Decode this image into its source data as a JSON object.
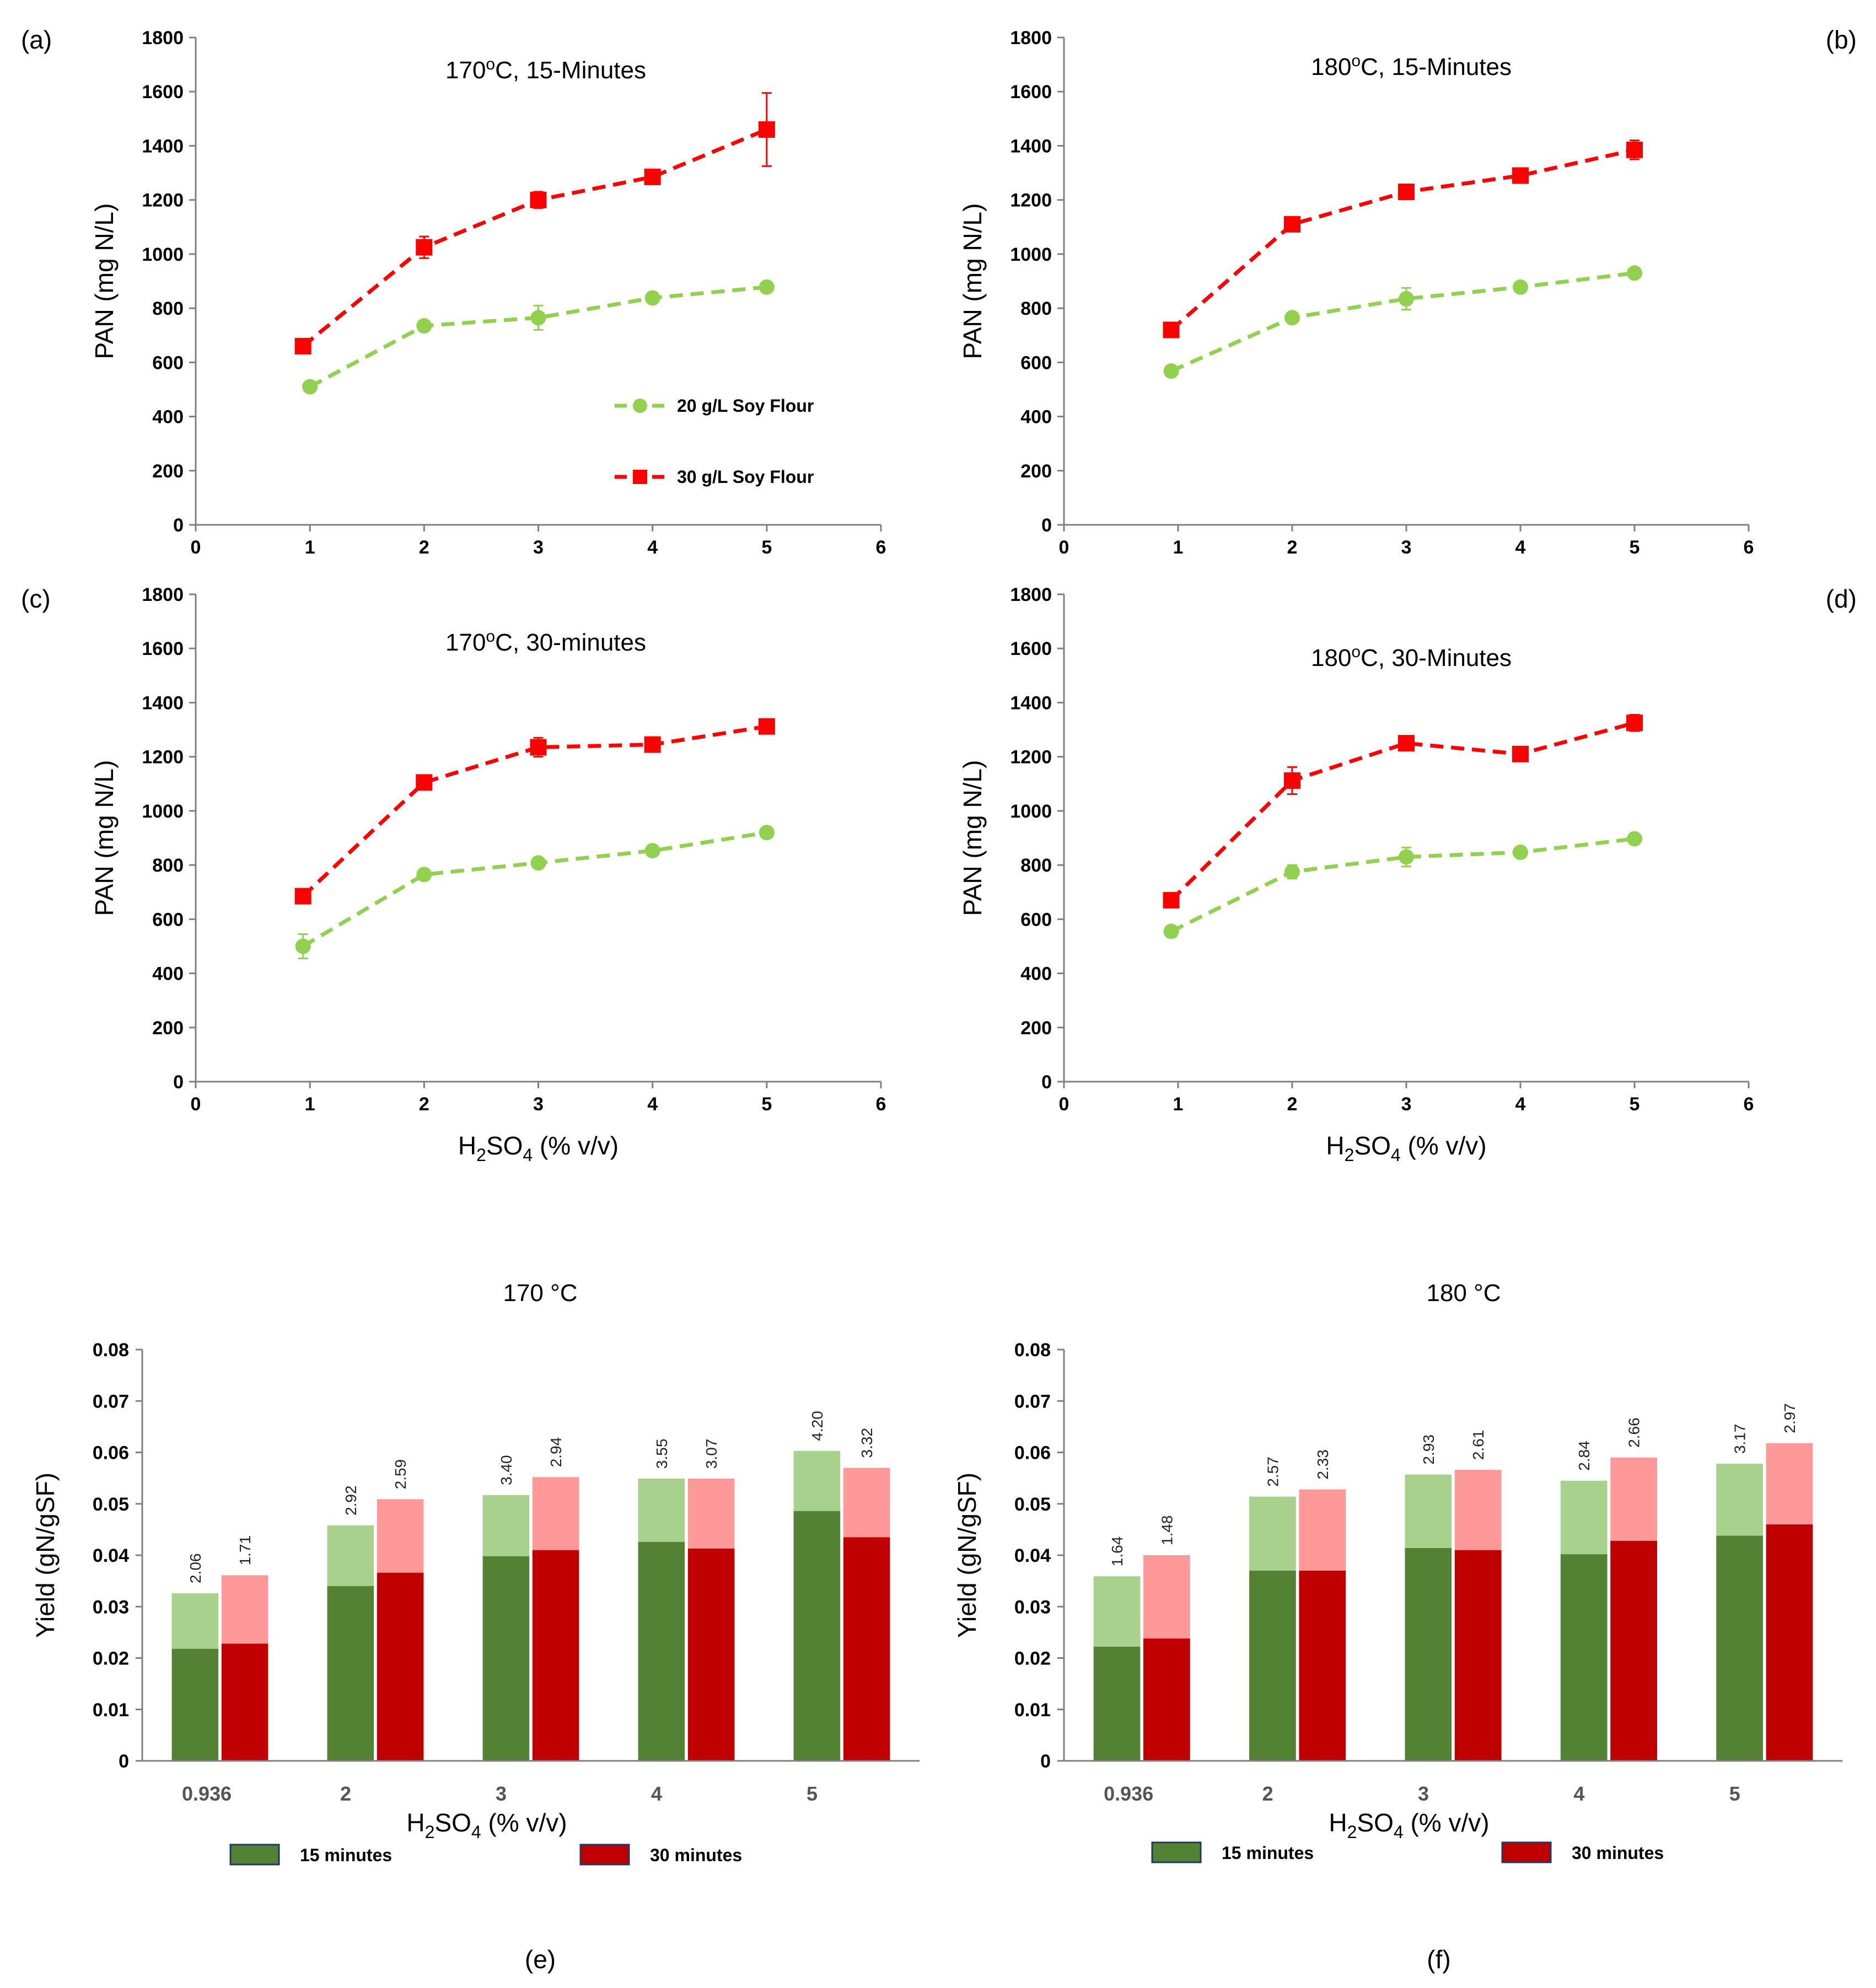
{
  "chart_data": [
    {
      "id": "a",
      "type": "line",
      "tag": "(a)",
      "title": "170°C, 15-Minutes",
      "title_main": "170",
      "title_sup": "o",
      "title_rest": "C, 15-Minutes",
      "ylabel": "PAN (mg N/L)",
      "xlabel": "",
      "xlim": [
        0,
        6
      ],
      "ylim": [
        0,
        1800
      ],
      "xticks": [
        "0",
        "1",
        "2",
        "3",
        "4",
        "5",
        "6"
      ],
      "yticks": [
        "0",
        "200",
        "400",
        "600",
        "800",
        "1000",
        "1200",
        "1400",
        "1600",
        "1800"
      ],
      "show_legend": true,
      "series": [
        {
          "name": "20 g/L Soy Flour",
          "color": "#92d050",
          "marker": "circle",
          "x": [
            1,
            2,
            3,
            4,
            5
          ],
          "y": [
            510,
            735,
            765,
            838,
            878
          ],
          "err": [
            10,
            15,
            45,
            10,
            10
          ]
        },
        {
          "name": "30 g/L Soy Flour",
          "color": "#ff0000",
          "marker": "square",
          "x": [
            0.94,
            2,
            3,
            4,
            5
          ],
          "y": [
            660,
            1025,
            1200,
            1285,
            1460
          ],
          "err": [
            10,
            40,
            30,
            10,
            135
          ]
        }
      ]
    },
    {
      "id": "b",
      "type": "line",
      "tag": "(b)",
      "title": "180°C, 15-Minutes",
      "title_main": "180",
      "title_sup": "o",
      "title_rest": "C, 15-Minutes",
      "ylabel": "PAN (mg N/L)",
      "xlabel": "",
      "xlim": [
        0,
        6
      ],
      "ylim": [
        0,
        1800
      ],
      "xticks": [
        "0",
        "1",
        "2",
        "3",
        "4",
        "5",
        "6"
      ],
      "yticks": [
        "0",
        "200",
        "400",
        "600",
        "800",
        "1000",
        "1200",
        "1400",
        "1600",
        "1800"
      ],
      "show_legend": false,
      "series": [
        {
          "name": "20 g/L Soy Flour",
          "color": "#92d050",
          "marker": "circle",
          "x": [
            0.94,
            2,
            3,
            4,
            5
          ],
          "y": [
            568,
            765,
            835,
            878,
            930
          ],
          "err": [
            10,
            12,
            40,
            10,
            10
          ]
        },
        {
          "name": "30 g/L Soy Flour",
          "color": "#ff0000",
          "marker": "square",
          "x": [
            0.94,
            2,
            3,
            4,
            5
          ],
          "y": [
            720,
            1110,
            1230,
            1290,
            1385
          ],
          "err": [
            10,
            15,
            15,
            15,
            35
          ]
        }
      ]
    },
    {
      "id": "c",
      "type": "line",
      "tag": "(c)",
      "title": "170°C, 30-minutes",
      "title_main": "170",
      "title_sup": "o",
      "title_rest": "C, 30-minutes",
      "ylabel": "PAN (mg N/L)",
      "xlabel": "H2SO4 (% v/v)",
      "xlim": [
        0,
        6
      ],
      "ylim": [
        0,
        1800
      ],
      "xticks": [
        "0",
        "1",
        "2",
        "3",
        "4",
        "5",
        "6"
      ],
      "yticks": [
        "0",
        "200",
        "400",
        "600",
        "800",
        "1000",
        "1200",
        "1400",
        "1600",
        "1800"
      ],
      "show_legend": false,
      "series": [
        {
          "name": "20 g/L Soy Flour",
          "color": "#92d050",
          "marker": "circle",
          "x": [
            0.94,
            2,
            3,
            4,
            5
          ],
          "y": [
            500,
            765,
            808,
            853,
            920
          ],
          "err": [
            45,
            10,
            10,
            10,
            10
          ]
        },
        {
          "name": "30 g/L Soy Flour",
          "color": "#ff0000",
          "marker": "square",
          "x": [
            0.94,
            2,
            3,
            4,
            5
          ],
          "y": [
            685,
            1105,
            1235,
            1245,
            1312
          ],
          "err": [
            10,
            15,
            35,
            10,
            15
          ]
        }
      ]
    },
    {
      "id": "d",
      "type": "line",
      "tag": "(d)",
      "title": "180°C, 30-Minutes",
      "title_main": "180",
      "title_sup": "o",
      "title_rest": "C, 30-Minutes",
      "ylabel": "PAN (mg N/L)",
      "xlabel": "H2SO4 (% v/v)",
      "xlim": [
        0,
        6
      ],
      "ylim": [
        0,
        1800
      ],
      "xticks": [
        "0",
        "1",
        "2",
        "3",
        "4",
        "5",
        "6"
      ],
      "yticks": [
        "0",
        "200",
        "400",
        "600",
        "800",
        "1000",
        "1200",
        "1400",
        "1600",
        "1800"
      ],
      "show_legend": false,
      "series": [
        {
          "name": "20 g/L Soy Flour",
          "color": "#92d050",
          "marker": "circle",
          "x": [
            0.94,
            2,
            3,
            4,
            5
          ],
          "y": [
            555,
            775,
            830,
            847,
            897
          ],
          "err": [
            10,
            25,
            35,
            10,
            10
          ]
        },
        {
          "name": "30 g/L Soy Flour",
          "color": "#ff0000",
          "marker": "square",
          "x": [
            0.94,
            2,
            3,
            4,
            5
          ],
          "y": [
            670,
            1112,
            1250,
            1210,
            1325
          ],
          "err": [
            10,
            50,
            10,
            15,
            30
          ]
        }
      ]
    },
    {
      "id": "e",
      "type": "bar",
      "tag": "(e)",
      "title": "170 °C",
      "ylabel": "Yield (gN/gSF)",
      "xlabel": "H2SO4 (% v/v)",
      "ylim": [
        0,
        0.08
      ],
      "yticks": [
        "0",
        "0.01",
        "0.02",
        "0.03",
        "0.04",
        "0.05",
        "0.06",
        "0.07",
        "0.08"
      ],
      "categories": [
        "0.936",
        "2",
        "3",
        "4",
        "5"
      ],
      "series": [
        {
          "name": "15 minutes",
          "color_dark": "#548235",
          "color_light": "#a9d18e",
          "lower": [
            0.0218,
            0.034,
            0.0398,
            0.0426,
            0.0486
          ],
          "total": [
            0.0326,
            0.0458,
            0.0517,
            0.0549,
            0.0603
          ],
          "labels": [
            "2.06",
            "2.92",
            "3.40",
            "3.55",
            "4.20"
          ]
        },
        {
          "name": "30 minutes",
          "color_dark": "#c00000",
          "color_light": "#ff9999",
          "lower": [
            0.0228,
            0.0366,
            0.041,
            0.0413,
            0.0435
          ],
          "total": [
            0.0361,
            0.0509,
            0.0552,
            0.0549,
            0.057
          ],
          "labels": [
            "1.71",
            "2.59",
            "2.94",
            "3.07",
            "3.32"
          ]
        }
      ]
    },
    {
      "id": "f",
      "type": "bar",
      "tag": "(f)",
      "title": "180 °C",
      "ylabel": "Yield (gN/gSF)",
      "xlabel": "H2SO4 (% v/v)",
      "ylim": [
        0,
        0.08
      ],
      "yticks": [
        "0",
        "0.01",
        "0.02",
        "0.03",
        "0.04",
        "0.05",
        "0.06",
        "0.07",
        "0.08"
      ],
      "categories": [
        "0.936",
        "2",
        "3",
        "4",
        "5"
      ],
      "series": [
        {
          "name": "15 minutes",
          "color_dark": "#548235",
          "color_light": "#a9d18e",
          "lower": [
            0.0222,
            0.037,
            0.0414,
            0.0402,
            0.0438
          ],
          "total": [
            0.0359,
            0.0514,
            0.0557,
            0.0545,
            0.0578
          ],
          "labels": [
            "1.64",
            "2.57",
            "2.93",
            "2.84",
            "3.17"
          ]
        },
        {
          "name": "30 minutes",
          "color_dark": "#c00000",
          "color_light": "#ff9999",
          "lower": [
            0.0238,
            0.037,
            0.041,
            0.0428,
            0.046
          ],
          "total": [
            0.04,
            0.0528,
            0.0566,
            0.059,
            0.0618
          ],
          "labels": [
            "1.48",
            "2.33",
            "2.61",
            "2.66",
            "2.97"
          ]
        }
      ]
    }
  ]
}
